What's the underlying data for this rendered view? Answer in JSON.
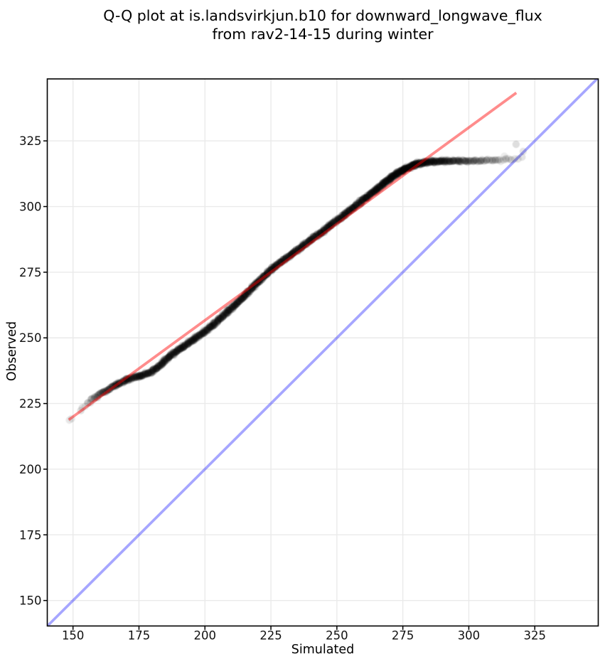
{
  "chart_data": {
    "type": "scatter",
    "title": "Q-Q plot at is.landsvirkjun.b10 for downward_longwave_flux from rav2-14-15 during winter",
    "title_lines": [
      "Q-Q plot at is.landsvirkjun.b10 for downward_longwave_flux",
      "from rav2-14-15 during winter"
    ],
    "xlabel": "Simulated",
    "ylabel": "Observed",
    "xlim": [
      140.25,
      349.05
    ],
    "ylim": [
      140.3,
      348.6
    ],
    "xticks": [
      150,
      175,
      200,
      225,
      250,
      275,
      300,
      325
    ],
    "yticks": [
      150,
      175,
      200,
      225,
      250,
      275,
      300,
      325
    ],
    "grid": true,
    "background_color": "#ffffff",
    "grid_color": "#eaeaea",
    "spine_color": "#000000",
    "identity_line": {
      "name": "identity-line",
      "color": "#0000ff",
      "opacity": 0.35,
      "points": [
        [
          140.3,
          140.3
        ],
        [
          348.6,
          348.6
        ]
      ]
    },
    "fit_line": {
      "name": "qq-fit-line",
      "color": "#ff0000",
      "opacity": 0.45,
      "points": [
        [
          148.4,
          218.8
        ],
        [
          318.0,
          343.3
        ]
      ]
    },
    "scatter": {
      "name": "qq-points",
      "color": "#000000",
      "point_radius_px": 5.2,
      "curve_anchor_fields": [
        "simulated",
        "observed",
        "density_per_px",
        "alpha"
      ],
      "curve_anchors": [
        [
          148.0,
          217.8,
          0.05,
          0.1
        ],
        [
          149.4,
          219.0,
          0.06,
          0.1
        ],
        [
          151.0,
          220.5,
          0.07,
          0.11
        ],
        [
          153.0,
          222.6,
          0.1,
          0.11
        ],
        [
          155.5,
          225.2,
          0.28,
          0.12
        ],
        [
          158.0,
          227.2,
          0.65,
          0.13
        ],
        [
          161.0,
          229.0,
          1.0,
          0.14
        ],
        [
          165.0,
          231.4,
          1.5,
          0.15
        ],
        [
          169.0,
          233.4,
          1.7,
          0.15
        ],
        [
          173.0,
          235.0,
          1.8,
          0.15
        ],
        [
          176.5,
          235.8,
          1.8,
          0.15
        ],
        [
          180.0,
          237.2,
          1.8,
          0.15
        ],
        [
          183.5,
          239.9,
          1.8,
          0.15
        ],
        [
          187.0,
          243.4,
          1.8,
          0.15
        ],
        [
          191.0,
          246.1,
          1.85,
          0.15
        ],
        [
          195.0,
          248.8,
          1.85,
          0.15
        ],
        [
          200.0,
          252.4,
          1.85,
          0.15
        ],
        [
          205.0,
          256.6,
          1.85,
          0.15
        ],
        [
          210.5,
          261.7,
          1.85,
          0.15
        ],
        [
          216.0,
          267.1,
          1.85,
          0.15
        ],
        [
          221.0,
          272.1,
          1.85,
          0.15
        ],
        [
          225.0,
          276.0,
          1.85,
          0.15
        ],
        [
          229.0,
          279.0,
          1.85,
          0.15
        ],
        [
          234.0,
          282.6,
          1.85,
          0.15
        ],
        [
          239.0,
          286.5,
          1.85,
          0.15
        ],
        [
          244.0,
          290.2,
          1.85,
          0.15
        ],
        [
          249.0,
          294.0,
          1.9,
          0.15
        ],
        [
          253.0,
          297.0,
          1.95,
          0.15
        ],
        [
          257.0,
          300.1,
          2.0,
          0.15
        ],
        [
          261.0,
          303.4,
          2.1,
          0.16
        ],
        [
          264.5,
          306.1,
          2.2,
          0.16
        ],
        [
          268.0,
          309.1,
          2.4,
          0.16
        ],
        [
          271.0,
          311.4,
          2.6,
          0.17
        ],
        [
          274.0,
          313.3,
          2.8,
          0.17
        ],
        [
          277.0,
          314.9,
          3.0,
          0.17
        ],
        [
          279.5,
          315.9,
          3.0,
          0.17
        ],
        [
          281.5,
          316.5,
          2.7,
          0.16
        ],
        [
          284.0,
          317.0,
          2.4,
          0.16
        ],
        [
          287.0,
          317.2,
          2.1,
          0.15
        ],
        [
          291.0,
          317.3,
          1.8,
          0.14
        ],
        [
          295.0,
          317.4,
          1.5,
          0.13
        ],
        [
          299.0,
          317.4,
          1.2,
          0.12
        ],
        [
          303.0,
          317.5,
          0.95,
          0.11
        ],
        [
          307.0,
          317.5,
          0.75,
          0.1
        ],
        [
          311.0,
          317.6,
          0.55,
          0.1
        ],
        [
          314.5,
          317.9,
          0.4,
          0.1
        ],
        [
          317.0,
          318.1,
          0.3,
          0.1
        ],
        [
          319.5,
          318.5,
          0.18,
          0.09
        ],
        [
          321.0,
          318.8,
          0.1,
          0.09
        ]
      ],
      "extra_point_fields": [
        "simulated",
        "observed",
        "alpha"
      ],
      "extra_points": [
        [
          317.9,
          323.7,
          0.13
        ],
        [
          320.6,
          321.0,
          0.1
        ],
        [
          313.5,
          319.2,
          0.07
        ]
      ]
    }
  }
}
